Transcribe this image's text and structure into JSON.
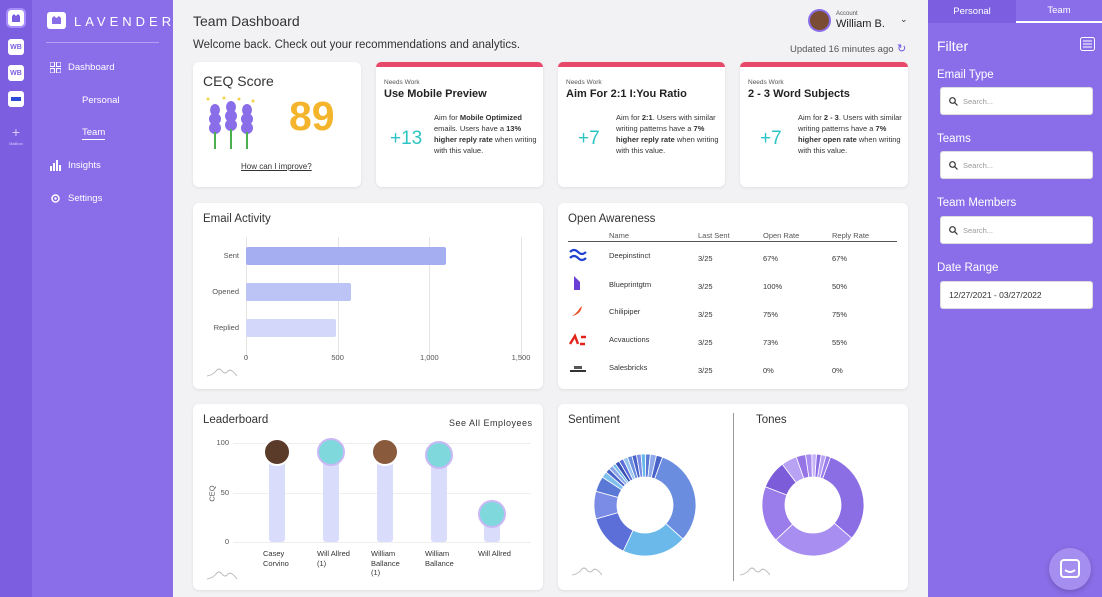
{
  "rail": {
    "items": [
      "WB",
      "WB"
    ],
    "add_label": "Mailbox"
  },
  "sidebar": {
    "logo": "LAVENDER",
    "nav": [
      {
        "label": "Dashboard"
      },
      {
        "label": "Insights"
      },
      {
        "label": "Settings"
      }
    ],
    "sub_items": [
      {
        "label": "Personal"
      },
      {
        "label": "Team"
      }
    ]
  },
  "header": {
    "title": "Team Dashboard",
    "welcome": "Welcome back. Check out your recommendations and analytics.",
    "account_label": "Account",
    "account_name": "William B.",
    "updated": "Updated 16 minutes ago"
  },
  "ceq": {
    "title": "CEQ Score",
    "score": "89",
    "link": "How can I improve?"
  },
  "recommendations": [
    {
      "tag": "Needs Work",
      "title": "Use Mobile Preview",
      "value": "+13",
      "desc_parts": [
        "Aim for ",
        "Mobile Optimized",
        " emails. Users have a ",
        "13% higher reply rate",
        " when writing with this value."
      ]
    },
    {
      "tag": "Needs Work",
      "title": "Aim For 2:1 I:You Ratio",
      "value": "+7",
      "desc_parts": [
        "Aim for ",
        "2:1",
        ". Users with similar writing patterns have a ",
        "7% higher reply rate",
        " when writing with this value."
      ]
    },
    {
      "tag": "Needs Work",
      "title": "2 - 3 Word Subjects",
      "value": "+7",
      "desc_parts": [
        "Aim for ",
        "2 - 3",
        ". Users with similar writing patterns have a ",
        "7% higher open rate",
        " when writing with this value."
      ]
    }
  ],
  "email_activity": {
    "title": "Email Activity"
  },
  "open_awareness": {
    "title": "Open Awareness",
    "columns": [
      "Name",
      "Last Sent",
      "Open Rate",
      "Reply Rate"
    ],
    "rows": [
      {
        "name": "Deepinstinct",
        "last_sent": "3/25",
        "open_rate": "67%",
        "reply_rate": "67%"
      },
      {
        "name": "Blueprintgtm",
        "last_sent": "3/25",
        "open_rate": "100%",
        "reply_rate": "50%"
      },
      {
        "name": "Chilipiper",
        "last_sent": "3/25",
        "open_rate": "75%",
        "reply_rate": "75%"
      },
      {
        "name": "Acvauctions",
        "last_sent": "3/25",
        "open_rate": "73%",
        "reply_rate": "55%"
      },
      {
        "name": "Salesbricks",
        "last_sent": "3/25",
        "open_rate": "0%",
        "reply_rate": "0%"
      }
    ]
  },
  "leaderboard": {
    "title": "Leaderboard",
    "see_all": "See All Employees"
  },
  "sentiment": {
    "title": "Sentiment"
  },
  "tones": {
    "title": "Tones"
  },
  "right_panel": {
    "tabs": [
      {
        "label": "Personal"
      },
      {
        "label": "Team"
      }
    ],
    "filter_title": "Filter",
    "fields": [
      {
        "label": "Email Type",
        "placeholder": "Search..."
      },
      {
        "label": "Teams",
        "placeholder": "Search..."
      },
      {
        "label": "Team Members",
        "placeholder": "Search..."
      }
    ],
    "date_label": "Date Range",
    "date_value": "12/27/2021 - 03/27/2022"
  },
  "colors": {
    "accent": "#8a6ee9",
    "accent_dark": "#7b5fe0",
    "score": "#f4b52c",
    "teal": "#2ec4c4",
    "alert": "#e8486a"
  },
  "chart_data": [
    {
      "type": "bar",
      "orientation": "horizontal",
      "categories": [
        "Sent",
        "Opened",
        "Replied"
      ],
      "values": [
        1090,
        575,
        490
      ],
      "xlim": [
        0,
        1500
      ],
      "xticks": [
        "0",
        "500",
        "1,000",
        "1,500"
      ],
      "colors": [
        "#a6aef2",
        "#bcc3f5",
        "#d3d7f9"
      ]
    },
    {
      "type": "bar",
      "title": "Leaderboard",
      "ylabel": "CEQ",
      "ylim": [
        0,
        100
      ],
      "yticks": [
        "0",
        "50",
        "100"
      ],
      "categories": [
        "Casey Corvino",
        "Will Allred (1)",
        "William Ballance (1)",
        "William Ballance",
        "Will Allred"
      ],
      "values": [
        89,
        89,
        89,
        86,
        26
      ]
    },
    {
      "type": "pie",
      "title": "Sentiment",
      "donut": true,
      "values": [
        32,
        21,
        14,
        9,
        5,
        2,
        1.5,
        1.5,
        1,
        1.5,
        1.5,
        1.5,
        1.5,
        1.5,
        1.5,
        1.5,
        1.5,
        2,
        2
      ],
      "colors": [
        "#6b8de0",
        "#6ab9ea",
        "#5c6fd8",
        "#7a8ce5",
        "#5a79d6",
        "#7fc0ec",
        "#4a63c8",
        "#8ea9ea",
        "#6ab9ea",
        "#3a52b8",
        "#5c6fd8",
        "#9bc6ee",
        "#6b8de0",
        "#4a63c8",
        "#7a8ce5",
        "#6ab9ea",
        "#5a79d6",
        "#8ea9ea",
        "#4a63c8"
      ]
    },
    {
      "type": "pie",
      "title": "Tones",
      "donut": true,
      "values": [
        31,
        27,
        18,
        9,
        5,
        3,
        2,
        1.5,
        1.5,
        1.5,
        1.5
      ],
      "colors": [
        "#8b6de4",
        "#a78ef0",
        "#9a7cea",
        "#7c5cd8",
        "#b8a2f4",
        "#9575e6",
        "#a98cef",
        "#c6b4f7",
        "#8b6de4",
        "#b8a2f4",
        "#9a7cea"
      ]
    }
  ]
}
